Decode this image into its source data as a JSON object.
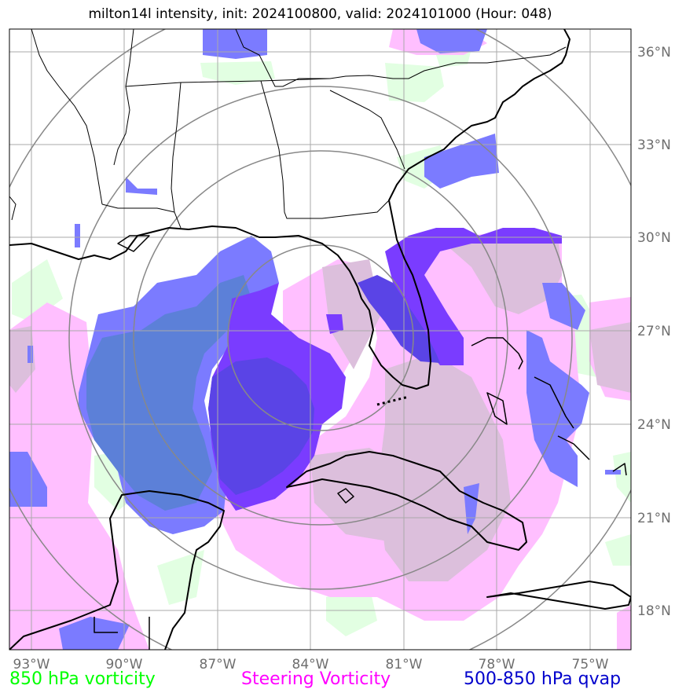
{
  "title": "milton14l intensity, init: 2024100800, valid: 2024101000 (Hour: 048)",
  "lon_labels": [
    "93°W",
    "90°W",
    "87°W",
    "84°W",
    "81°W",
    "78°W",
    "75°W"
  ],
  "lat_labels": [
    "36°N",
    "33°N",
    "30°N",
    "27°N",
    "24°N",
    "21°N",
    "18°N"
  ],
  "legend": {
    "vort850": "850 hPa vorticity",
    "steering": "Steering Vorticity",
    "qvap": "500-850 hPa qvap"
  },
  "colors": {
    "vort850": "#00ff00",
    "steering": "#ff00ff",
    "qvap": "#0000cc",
    "fill_green": "#e2ffe2",
    "fill_pink": "#ffbfff",
    "fill_mauve": "#dcbfdc",
    "fill_blue": "#7b7bff",
    "fill_steelblue": "#5c80d8",
    "fill_violet": "#7a3cff",
    "fill_darkblue": "#5a44e6",
    "grid": "#aaaaaa",
    "range_rings": "#888888",
    "coastline": "#000000"
  }
}
